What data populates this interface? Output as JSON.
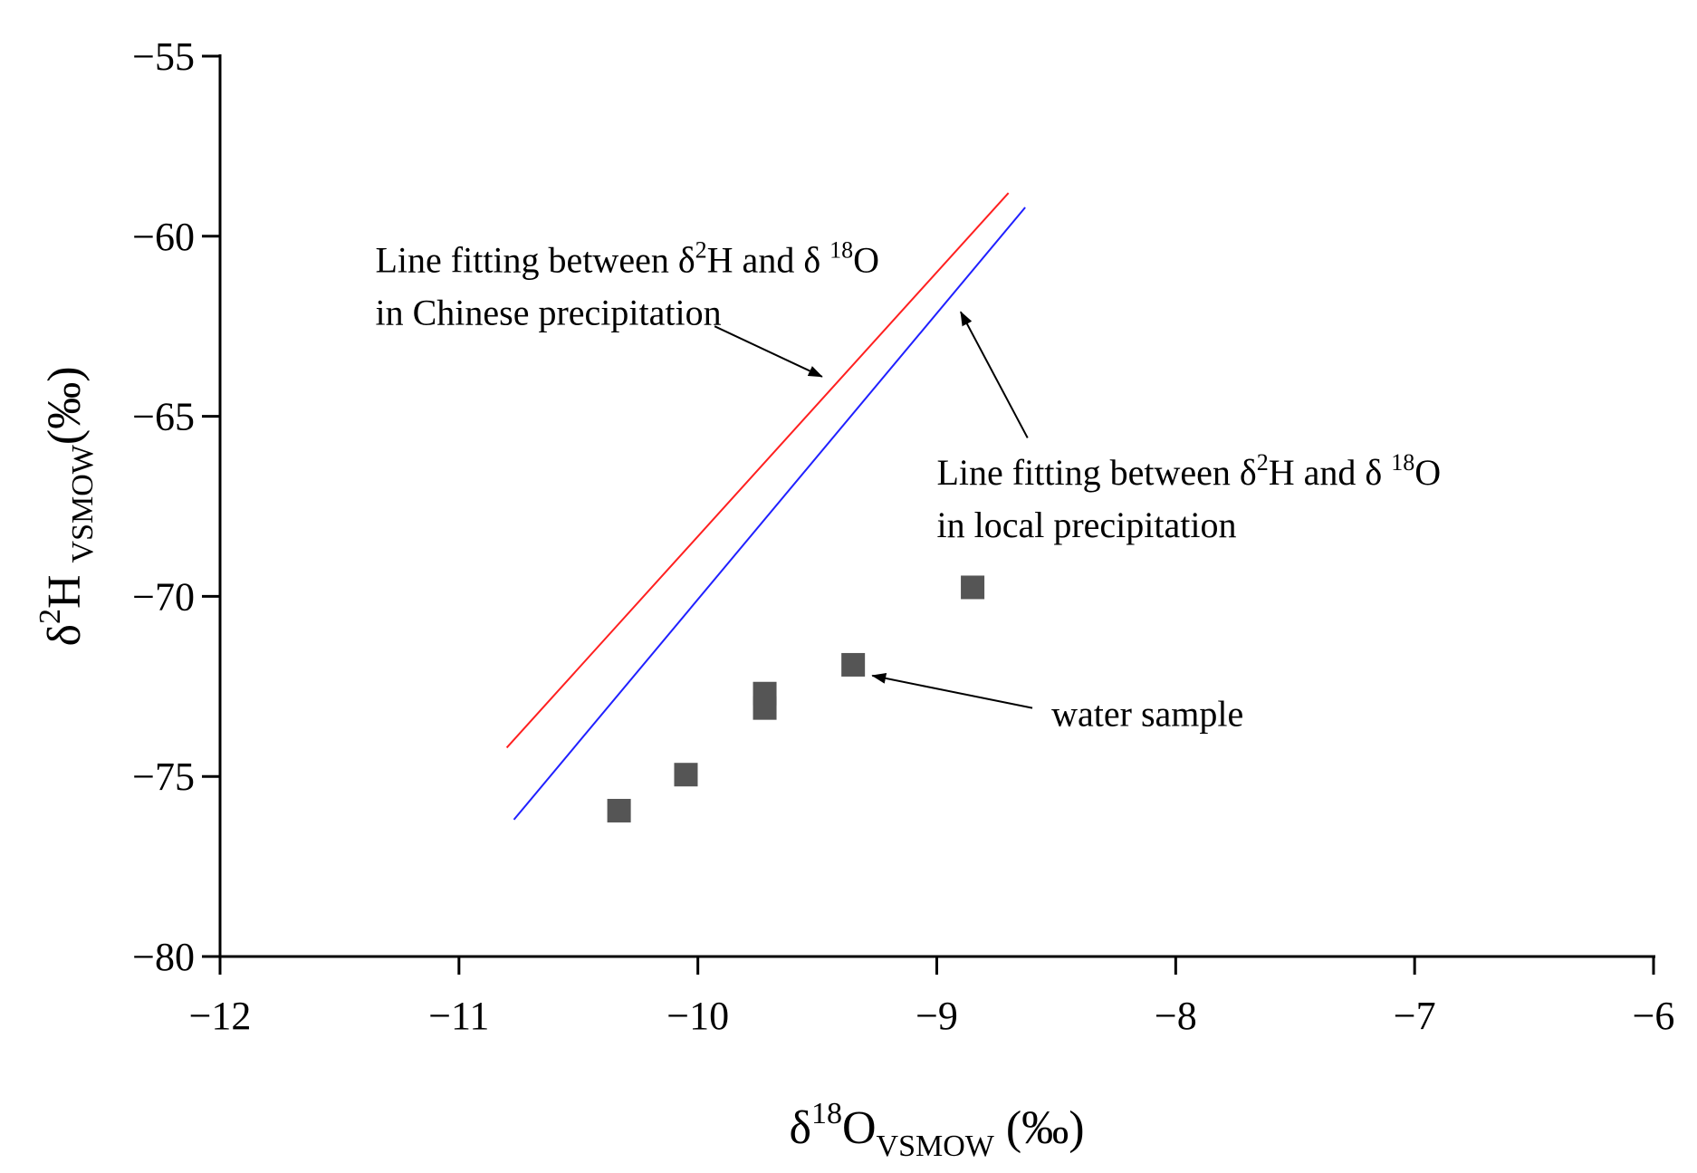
{
  "chart_data": {
    "type": "scatter",
    "xlabel": "δ18OVSMOW (‰)",
    "xlabel_parts": {
      "base": "δ",
      "sup": "18",
      "mid": "O",
      "sub": "VSMOW",
      "unit": " (‰)"
    },
    "ylabel": "δ2H VSMOW(‰)",
    "ylabel_parts": {
      "base": "δ",
      "sup": "2",
      "mid": "H ",
      "sub": "VSMOW",
      "unit": "(‰)"
    },
    "xlim": [
      -12,
      -6
    ],
    "ylim": [
      -80,
      -55
    ],
    "xticks": [
      -12,
      -11,
      -10,
      -9,
      -8,
      -7,
      -6
    ],
    "yticks": [
      -80,
      -75,
      -70,
      -65,
      -60,
      -55
    ],
    "xtick_labels": [
      "−12",
      "−11",
      "−10",
      "−9",
      "−8",
      "−7",
      "−6"
    ],
    "ytick_labels": [
      "−80",
      "−75",
      "−70",
      "−65",
      "−60",
      "−55"
    ],
    "grid": false,
    "series": [
      {
        "name": "Chinese precipitation line",
        "kind": "line",
        "color": "#ff2020",
        "x": [
          -10.8,
          -8.7
        ],
        "y": [
          -74.2,
          -58.8
        ]
      },
      {
        "name": "Local precipitation line",
        "kind": "line",
        "color": "#2020ff",
        "x": [
          -10.77,
          -8.63
        ],
        "y": [
          -76.2,
          -59.2
        ]
      },
      {
        "name": "water sample",
        "kind": "scatter",
        "marker": "square",
        "color": "#555555",
        "x": [
          -10.33,
          -10.05,
          -9.72,
          -9.72,
          -9.35,
          -8.85
        ],
        "y": [
          -75.95,
          -74.95,
          -73.1,
          -72.7,
          -71.9,
          -69.75
        ]
      }
    ],
    "annotations": [
      {
        "id": "chinese",
        "lines": [
          [
            "Line fitting between δ",
            "2",
            "H and δ ",
            "18",
            "O"
          ],
          [
            "in Chinese precipitation"
          ]
        ],
        "text_at": [
          -11.35,
          -61.0
        ],
        "arrow_from": [
          -9.93,
          -62.5
        ],
        "arrow_to": [
          -9.48,
          -63.9
        ]
      },
      {
        "id": "local",
        "lines": [
          [
            "Line fitting between δ",
            "2",
            "H and δ ",
            "18",
            "O"
          ],
          [
            "in local precipitation"
          ]
        ],
        "text_at": [
          -9.0,
          -66.9
        ],
        "arrow_from": [
          -8.62,
          -65.6
        ],
        "arrow_to": [
          -8.9,
          -62.1
        ]
      },
      {
        "id": "sample",
        "lines": [
          [
            "water sample"
          ]
        ],
        "text_at": [
          -8.52,
          -73.6
        ],
        "arrow_from": [
          -8.6,
          -73.1
        ],
        "arrow_to": [
          -9.27,
          -72.2
        ]
      }
    ]
  }
}
